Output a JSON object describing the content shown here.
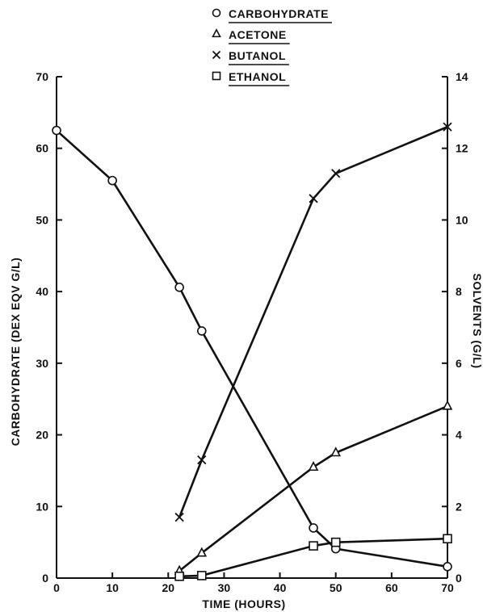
{
  "chart_data": {
    "type": "line",
    "xlabel": "TIME (HOURS)",
    "ylabel_left": "CARBOHYDRATE (DEX EQV G/L)",
    "ylabel_right": "SOLVENTS (G/L)",
    "xlim": [
      0,
      70
    ],
    "ylim_left": [
      0,
      70
    ],
    "ylim_right": [
      0,
      14
    ],
    "x_ticks": [
      0,
      10,
      20,
      30,
      40,
      50,
      60,
      70
    ],
    "y_left_ticks": [
      0,
      10,
      20,
      30,
      40,
      50,
      60,
      70
    ],
    "y_right_ticks": [
      0,
      2,
      4,
      6,
      8,
      10,
      12,
      14
    ],
    "grid": false,
    "legend_position": "top-center",
    "series": [
      {
        "name": "CARBOHYDRATE",
        "axis": "left",
        "marker": "circle",
        "x": [
          0,
          10,
          22,
          26,
          46,
          50,
          70
        ],
        "y": [
          62.5,
          55.5,
          40.6,
          34.5,
          7.0,
          4.1,
          1.6
        ]
      },
      {
        "name": "ACETONE",
        "axis": "right",
        "marker": "triangle",
        "x": [
          22,
          26,
          46,
          50,
          70
        ],
        "y": [
          0.2,
          0.7,
          3.1,
          3.5,
          4.8
        ]
      },
      {
        "name": "BUTANOL",
        "axis": "right",
        "marker": "x",
        "x": [
          22,
          26,
          46,
          50,
          70
        ],
        "y": [
          1.7,
          3.3,
          10.6,
          11.3,
          12.6
        ]
      },
      {
        "name": "ETHANOL",
        "axis": "right",
        "marker": "square",
        "x": [
          22,
          26,
          46,
          50,
          70
        ],
        "y": [
          0.05,
          0.07,
          0.9,
          1.0,
          1.1
        ]
      }
    ]
  }
}
